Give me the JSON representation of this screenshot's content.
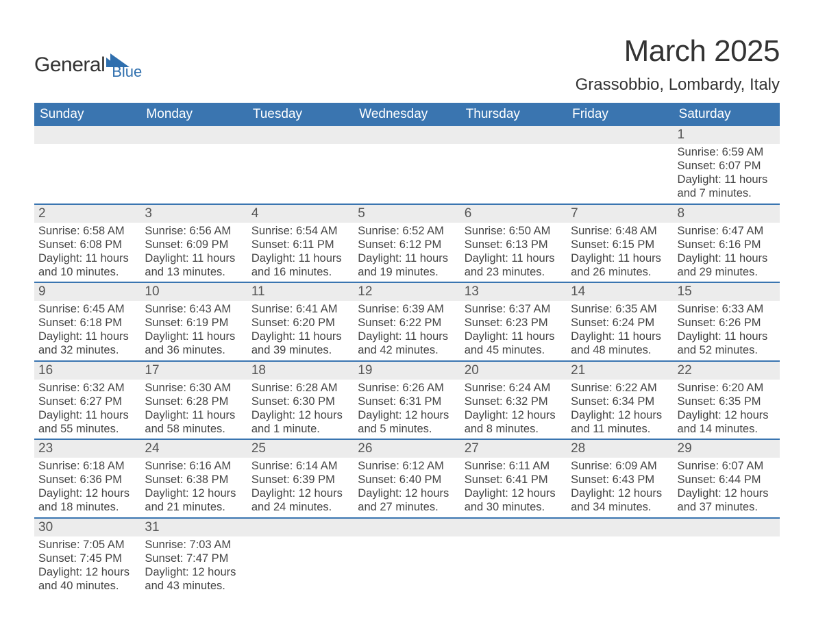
{
  "brand": {
    "word1": "General",
    "word2": "Blue",
    "accent": "#2f6fae",
    "text_color": "#333333"
  },
  "title": "March 2025",
  "location": "Grassobbio, Lombardy, Italy",
  "colors": {
    "header_bg": "#3a75b0",
    "header_text": "#ffffff",
    "daynum_bg": "#ececec",
    "row_border": "#3a75b0",
    "body_text": "#444444",
    "page_bg": "#ffffff"
  },
  "typography": {
    "title_pt": 44,
    "location_pt": 24,
    "header_pt": 19,
    "daynum_pt": 19,
    "detail_pt": 16.5
  },
  "day_headers": [
    "Sunday",
    "Monday",
    "Tuesday",
    "Wednesday",
    "Thursday",
    "Friday",
    "Saturday"
  ],
  "weeks": [
    [
      null,
      null,
      null,
      null,
      null,
      null,
      {
        "n": "1",
        "sr": "6:59 AM",
        "ss": "6:07 PM",
        "dl": "11 hours and 7 minutes."
      }
    ],
    [
      {
        "n": "2",
        "sr": "6:58 AM",
        "ss": "6:08 PM",
        "dl": "11 hours and 10 minutes."
      },
      {
        "n": "3",
        "sr": "6:56 AM",
        "ss": "6:09 PM",
        "dl": "11 hours and 13 minutes."
      },
      {
        "n": "4",
        "sr": "6:54 AM",
        "ss": "6:11 PM",
        "dl": "11 hours and 16 minutes."
      },
      {
        "n": "5",
        "sr": "6:52 AM",
        "ss": "6:12 PM",
        "dl": "11 hours and 19 minutes."
      },
      {
        "n": "6",
        "sr": "6:50 AM",
        "ss": "6:13 PM",
        "dl": "11 hours and 23 minutes."
      },
      {
        "n": "7",
        "sr": "6:48 AM",
        "ss": "6:15 PM",
        "dl": "11 hours and 26 minutes."
      },
      {
        "n": "8",
        "sr": "6:47 AM",
        "ss": "6:16 PM",
        "dl": "11 hours and 29 minutes."
      }
    ],
    [
      {
        "n": "9",
        "sr": "6:45 AM",
        "ss": "6:18 PM",
        "dl": "11 hours and 32 minutes."
      },
      {
        "n": "10",
        "sr": "6:43 AM",
        "ss": "6:19 PM",
        "dl": "11 hours and 36 minutes."
      },
      {
        "n": "11",
        "sr": "6:41 AM",
        "ss": "6:20 PM",
        "dl": "11 hours and 39 minutes."
      },
      {
        "n": "12",
        "sr": "6:39 AM",
        "ss": "6:22 PM",
        "dl": "11 hours and 42 minutes."
      },
      {
        "n": "13",
        "sr": "6:37 AM",
        "ss": "6:23 PM",
        "dl": "11 hours and 45 minutes."
      },
      {
        "n": "14",
        "sr": "6:35 AM",
        "ss": "6:24 PM",
        "dl": "11 hours and 48 minutes."
      },
      {
        "n": "15",
        "sr": "6:33 AM",
        "ss": "6:26 PM",
        "dl": "11 hours and 52 minutes."
      }
    ],
    [
      {
        "n": "16",
        "sr": "6:32 AM",
        "ss": "6:27 PM",
        "dl": "11 hours and 55 minutes."
      },
      {
        "n": "17",
        "sr": "6:30 AM",
        "ss": "6:28 PM",
        "dl": "11 hours and 58 minutes."
      },
      {
        "n": "18",
        "sr": "6:28 AM",
        "ss": "6:30 PM",
        "dl": "12 hours and 1 minute."
      },
      {
        "n": "19",
        "sr": "6:26 AM",
        "ss": "6:31 PM",
        "dl": "12 hours and 5 minutes."
      },
      {
        "n": "20",
        "sr": "6:24 AM",
        "ss": "6:32 PM",
        "dl": "12 hours and 8 minutes."
      },
      {
        "n": "21",
        "sr": "6:22 AM",
        "ss": "6:34 PM",
        "dl": "12 hours and 11 minutes."
      },
      {
        "n": "22",
        "sr": "6:20 AM",
        "ss": "6:35 PM",
        "dl": "12 hours and 14 minutes."
      }
    ],
    [
      {
        "n": "23",
        "sr": "6:18 AM",
        "ss": "6:36 PM",
        "dl": "12 hours and 18 minutes."
      },
      {
        "n": "24",
        "sr": "6:16 AM",
        "ss": "6:38 PM",
        "dl": "12 hours and 21 minutes."
      },
      {
        "n": "25",
        "sr": "6:14 AM",
        "ss": "6:39 PM",
        "dl": "12 hours and 24 minutes."
      },
      {
        "n": "26",
        "sr": "6:12 AM",
        "ss": "6:40 PM",
        "dl": "12 hours and 27 minutes."
      },
      {
        "n": "27",
        "sr": "6:11 AM",
        "ss": "6:41 PM",
        "dl": "12 hours and 30 minutes."
      },
      {
        "n": "28",
        "sr": "6:09 AM",
        "ss": "6:43 PM",
        "dl": "12 hours and 34 minutes."
      },
      {
        "n": "29",
        "sr": "6:07 AM",
        "ss": "6:44 PM",
        "dl": "12 hours and 37 minutes."
      }
    ],
    [
      {
        "n": "30",
        "sr": "7:05 AM",
        "ss": "7:45 PM",
        "dl": "12 hours and 40 minutes."
      },
      {
        "n": "31",
        "sr": "7:03 AM",
        "ss": "7:47 PM",
        "dl": "12 hours and 43 minutes."
      },
      null,
      null,
      null,
      null,
      null
    ]
  ],
  "labels": {
    "sunrise": "Sunrise: ",
    "sunset": "Sunset: ",
    "daylight": "Daylight: "
  }
}
